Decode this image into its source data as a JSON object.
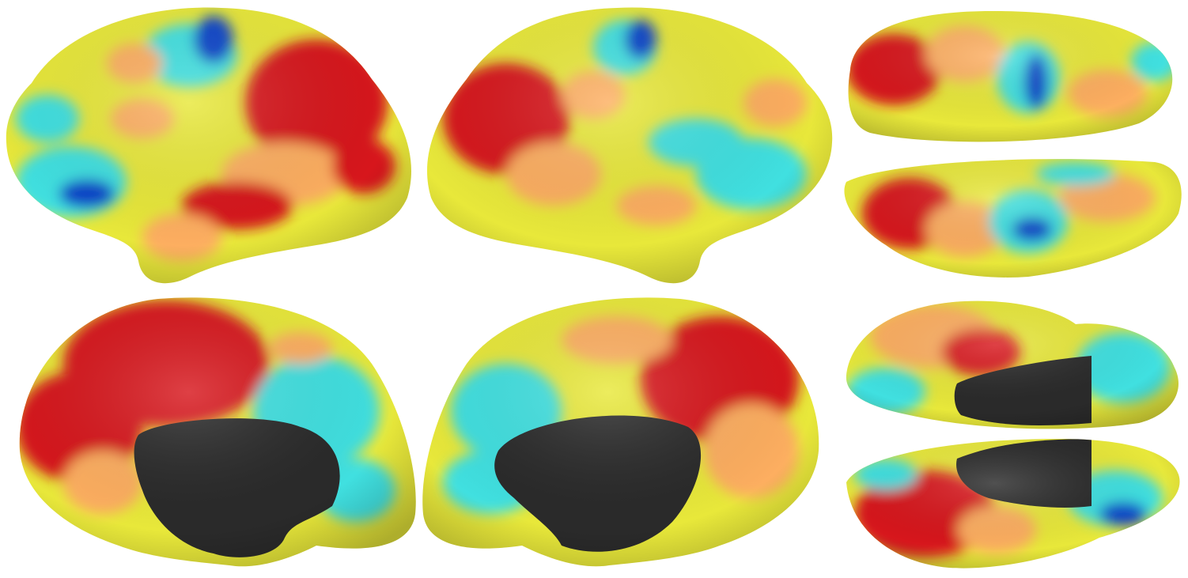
{
  "palette": {
    "background": "#ffffff",
    "hot": "#d7191c",
    "warm": "#fdae61",
    "mid": "#e8e83a",
    "cool": "#40e0e0",
    "cold": "#0b45c9",
    "medial_wall": "#2a2a2a"
  },
  "views": [
    {
      "name": "left-lateral-view"
    },
    {
      "name": "right-lateral-view"
    },
    {
      "name": "superior-view"
    },
    {
      "name": "inferior-view"
    },
    {
      "name": "left-medial-view"
    },
    {
      "name": "right-medial-view"
    },
    {
      "name": "anterior-medial-view"
    },
    {
      "name": "posterior-medial-view"
    }
  ]
}
